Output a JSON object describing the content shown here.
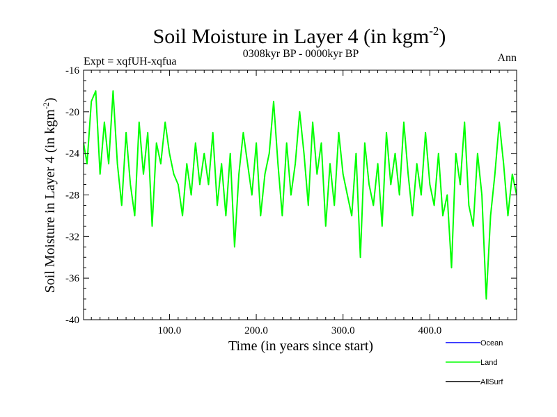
{
  "chart_data": {
    "type": "line",
    "title": "Soil Moisture in Layer 4 (in kgm",
    "title_sup": "-2",
    "title_close": ")",
    "subtitle": "0308kyr BP - 0000kyr BP",
    "left_label": "Expt = xqfUH-xqfua",
    "right_label": "Ann",
    "xlabel": "Time (in years since start)",
    "ylabel": "Soil Moisture in Layer 4 (in kgm",
    "ylabel_sup": "-2",
    "ylabel_close": ")",
    "xlim": [
      1,
      500
    ],
    "ylim": [
      -40,
      -16
    ],
    "x_ticks": [
      {
        "value": 100,
        "label": "100.0"
      },
      {
        "value": 200,
        "label": "200.0"
      },
      {
        "value": 300,
        "label": "300.0"
      },
      {
        "value": 400,
        "label": "400.0"
      }
    ],
    "y_ticks": [
      {
        "value": -16,
        "label": "-16"
      },
      {
        "value": -20,
        "label": "-20"
      },
      {
        "value": -24,
        "label": "-24"
      },
      {
        "value": -28,
        "label": "-28"
      },
      {
        "value": -32,
        "label": "-32"
      },
      {
        "value": -36,
        "label": "-36"
      },
      {
        "value": -40,
        "label": "-40"
      }
    ],
    "legend": [
      {
        "name": "Ocean",
        "color": "#0000ff"
      },
      {
        "name": "Land",
        "color": "#00ff00"
      },
      {
        "name": "AllSurf",
        "color": "#000000"
      }
    ],
    "series": [
      {
        "name": "Land",
        "color": "#00ff00",
        "x": [
          1,
          5,
          10,
          15,
          20,
          25,
          30,
          35,
          40,
          45,
          50,
          55,
          60,
          65,
          70,
          75,
          80,
          85,
          90,
          95,
          100,
          105,
          110,
          115,
          120,
          125,
          130,
          135,
          140,
          145,
          150,
          155,
          160,
          165,
          170,
          175,
          180,
          185,
          190,
          195,
          200,
          205,
          210,
          215,
          220,
          225,
          230,
          235,
          240,
          245,
          250,
          255,
          260,
          265,
          270,
          275,
          280,
          285,
          290,
          295,
          300,
          305,
          310,
          315,
          320,
          325,
          330,
          335,
          340,
          345,
          350,
          355,
          360,
          365,
          370,
          375,
          380,
          385,
          390,
          395,
          400,
          405,
          410,
          415,
          420,
          425,
          430,
          435,
          440,
          445,
          450,
          455,
          460,
          465,
          470,
          475,
          480,
          485,
          490,
          495,
          500
        ],
        "values": [
          -23,
          -25,
          -19,
          -18,
          -26,
          -21,
          -25,
          -18,
          -25,
          -29,
          -22,
          -27,
          -30,
          -21,
          -26,
          -22,
          -31,
          -23,
          -25,
          -21,
          -24,
          -26,
          -27,
          -30,
          -25,
          -28,
          -23,
          -27,
          -24,
          -27,
          -22,
          -29,
          -25,
          -30,
          -24,
          -33,
          -26,
          -22,
          -25,
          -28,
          -23,
          -30,
          -26,
          -24,
          -19,
          -25,
          -30,
          -23,
          -28,
          -25,
          -20,
          -24,
          -29,
          -21,
          -26,
          -23,
          -31,
          -25,
          -29,
          -22,
          -26,
          -28,
          -30,
          -24,
          -34,
          -23,
          -27,
          -29,
          -25,
          -31,
          -22,
          -27,
          -24,
          -28,
          -21,
          -26,
          -30,
          -25,
          -28,
          -22,
          -27,
          -29,
          -24,
          -30,
          -28,
          -35,
          -24,
          -27,
          -21,
          -29,
          -31,
          -24,
          -28,
          -38,
          -30,
          -26,
          -21,
          -25,
          -30,
          -26,
          -28
        ]
      }
    ]
  }
}
